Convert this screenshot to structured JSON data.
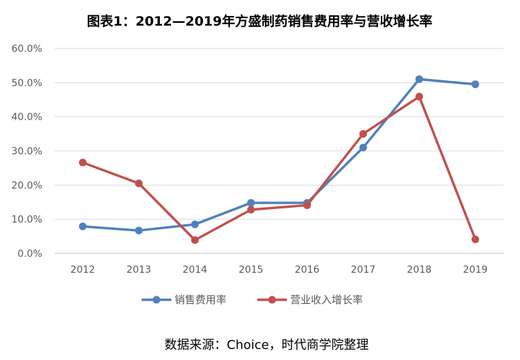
{
  "chart_data": {
    "type": "line",
    "title": "图表1：2012—2019年方盛制药销售费用率与营收增长率",
    "categories": [
      "2012",
      "2013",
      "2014",
      "2015",
      "2016",
      "2017",
      "2018",
      "2019"
    ],
    "y_ticks": [
      "0.0%",
      "10.0%",
      "20.0%",
      "30.0%",
      "40.0%",
      "50.0%",
      "60.0%"
    ],
    "ylim": [
      0,
      60
    ],
    "grid": true,
    "legend_position": "bottom",
    "series": [
      {
        "name": "销售费用率",
        "color": "#4F81BD",
        "values": [
          7.9,
          6.7,
          8.5,
          14.8,
          14.8,
          31.0,
          51.0,
          49.5
        ]
      },
      {
        "name": "营业收入增长率",
        "color": "#C0504D",
        "values": [
          26.6,
          20.5,
          3.9,
          12.8,
          14.1,
          35.0,
          45.9,
          4.1
        ]
      }
    ]
  },
  "source": "数据来源：Choice，时代商学院整理"
}
